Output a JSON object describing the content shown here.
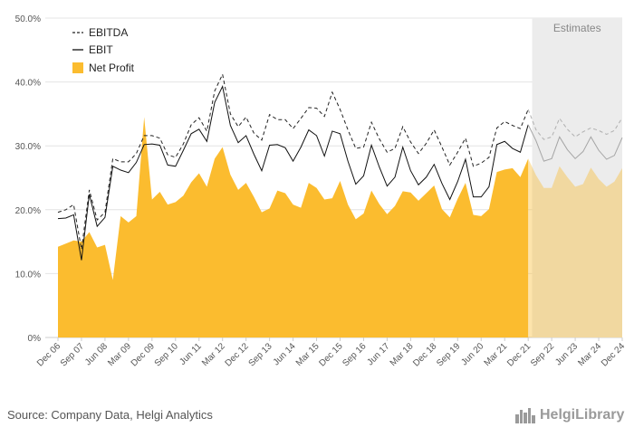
{
  "chart_data": {
    "type": "line",
    "legend_position": "top-left",
    "grid": true,
    "yticks": [
      "0%",
      "10.0%",
      "20.0%",
      "30.0%",
      "40.0%",
      "50.0%"
    ],
    "ylim": [
      0,
      50
    ],
    "x_tick_labels": [
      "Dec 06",
      "Sep 07",
      "Jun 08",
      "Mar 09",
      "Dec 09",
      "Sep 10",
      "Jun 11",
      "Mar 12",
      "Dec 12",
      "Sep 13",
      "Jun 14",
      "Mar 15",
      "Dec 15",
      "Sep 16",
      "Jun 17",
      "Mar 18",
      "Dec 18",
      "Sep 19",
      "Jun 20",
      "Mar 21",
      "Dec 21",
      "Sep 22",
      "Jun 23",
      "Mar 24",
      "Dec 24"
    ],
    "estimates_label": "Estimates",
    "estimate_start_index": 61,
    "quarters": [
      "Dec 06",
      "Mar 07",
      "Jun 07",
      "Sep 07",
      "Dec 07",
      "Mar 08",
      "Jun 08",
      "Sep 08",
      "Dec 08",
      "Mar 09",
      "Jun 09",
      "Sep 09",
      "Dec 09",
      "Mar 10",
      "Jun 10",
      "Sep 10",
      "Dec 10",
      "Mar 11",
      "Jun 11",
      "Sep 11",
      "Dec 11",
      "Mar 12",
      "Jun 12",
      "Sep 12",
      "Dec 12",
      "Mar 13",
      "Jun 13",
      "Sep 13",
      "Dec 13",
      "Mar 14",
      "Jun 14",
      "Sep 14",
      "Dec 14",
      "Mar 15",
      "Jun 15",
      "Sep 15",
      "Dec 15",
      "Mar 16",
      "Jun 16",
      "Sep 16",
      "Dec 16",
      "Mar 17",
      "Jun 17",
      "Sep 17",
      "Dec 17",
      "Mar 18",
      "Jun 18",
      "Sep 18",
      "Dec 18",
      "Mar 19",
      "Jun 19",
      "Sep 19",
      "Dec 19",
      "Mar 20",
      "Jun 20",
      "Sep 20",
      "Dec 20",
      "Mar 21",
      "Jun 21",
      "Sep 21",
      "Dec 21",
      "Mar 22",
      "Jun 22",
      "Sep 22",
      "Dec 22",
      "Mar 23",
      "Jun 23",
      "Sep 23",
      "Dec 23",
      "Mar 24",
      "Jun 24",
      "Sep 24",
      "Dec 24"
    ],
    "series": [
      {
        "name": "EBITDA",
        "style": "dashed",
        "color": "#222222",
        "values": [
          19.6,
          20.0,
          20.8,
          13.8,
          23.1,
          18.4,
          19.6,
          28.0,
          27.5,
          27.5,
          28.8,
          31.6,
          31.6,
          31.2,
          28.6,
          28.2,
          30.3,
          33.3,
          34.4,
          32.3,
          38.6,
          41.2,
          35.0,
          33.0,
          34.5,
          32.0,
          30.9,
          34.9,
          34.1,
          34.1,
          32.7,
          34.3,
          36.0,
          35.9,
          34.6,
          38.4,
          35.7,
          32.5,
          29.6,
          29.8,
          33.7,
          31.1,
          29.0,
          29.6,
          33.0,
          30.6,
          28.8,
          30.4,
          32.5,
          29.8,
          27.0,
          29.0,
          31.2,
          26.8,
          27.3,
          28.2,
          32.8,
          33.8,
          33.2,
          32.7,
          35.7,
          32.5,
          31.0,
          31.4,
          34.3,
          32.6,
          31.4,
          32.2,
          32.8,
          32.4,
          31.8,
          32.4,
          34.4
        ]
      },
      {
        "name": "EBIT",
        "style": "solid",
        "color": "#111111",
        "values": [
          18.6,
          18.7,
          19.2,
          12.1,
          22.4,
          17.4,
          18.8,
          26.8,
          26.2,
          25.8,
          27.4,
          30.2,
          30.3,
          30.1,
          27.0,
          26.8,
          29.3,
          31.9,
          32.6,
          30.7,
          36.8,
          39.3,
          33.2,
          30.5,
          31.6,
          28.7,
          26.1,
          30.1,
          30.2,
          29.7,
          27.6,
          29.8,
          32.5,
          31.6,
          28.4,
          32.3,
          31.9,
          27.6,
          24.0,
          25.3,
          30.1,
          26.7,
          23.7,
          25.1,
          29.8,
          26.1,
          23.9,
          25.1,
          27.1,
          24.1,
          21.6,
          24.4,
          27.9,
          22.0,
          22.0,
          23.6,
          30.2,
          30.7,
          29.6,
          29.0,
          33.3,
          30.8,
          27.6,
          28.0,
          31.4,
          29.4,
          28.0,
          29.1,
          31.4,
          29.3,
          27.9,
          28.5,
          31.3
        ]
      },
      {
        "name": "Net Profit",
        "style": "area",
        "color": "#fbbc2f",
        "values": [
          14.2,
          14.7,
          15.2,
          15.0,
          16.5,
          14.1,
          14.5,
          9.0,
          19.0,
          18.0,
          19.0,
          34.5,
          21.6,
          22.8,
          20.8,
          21.2,
          22.2,
          24.3,
          25.7,
          23.6,
          28.0,
          29.8,
          25.5,
          23.1,
          24.2,
          22.0,
          19.6,
          20.2,
          23.0,
          22.6,
          20.8,
          20.3,
          24.2,
          23.4,
          21.6,
          21.8,
          24.5,
          20.8,
          18.5,
          19.4,
          23.0,
          20.9,
          19.3,
          20.6,
          22.9,
          22.7,
          21.4,
          22.6,
          23.8,
          20.1,
          18.8,
          21.7,
          24.2,
          19.2,
          19.0,
          20.1,
          25.9,
          26.3,
          26.5,
          25.1,
          28.0,
          25.4,
          23.4,
          23.4,
          26.8,
          25.1,
          23.6,
          24.0,
          26.6,
          24.8,
          23.6,
          24.4,
          26.5
        ]
      }
    ]
  },
  "legend": [
    {
      "label": "EBITDA",
      "icon": "dashed-line-icon"
    },
    {
      "label": "EBIT",
      "icon": "solid-line-icon"
    },
    {
      "label": "Net Profit",
      "icon": "filled-square-icon"
    }
  ],
  "footer": {
    "source": "Source: Company Data, Helgi Analytics",
    "brand": "HelgiLibrary",
    "brand_icon": "skyline-logo-icon",
    "brand_color": "#9a9a9a"
  }
}
